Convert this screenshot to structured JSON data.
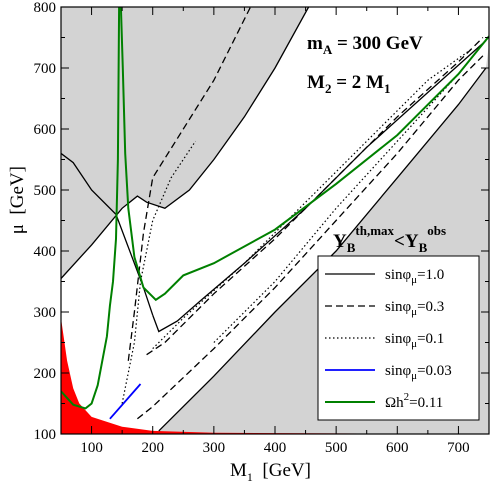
{
  "chart_data": {
    "type": "line",
    "title": "",
    "xlim": [
      50,
      750
    ],
    "ylim": [
      100,
      800
    ],
    "x_ticks": [
      100,
      200,
      300,
      400,
      500,
      600,
      700
    ],
    "y_ticks": [
      100,
      200,
      300,
      400,
      500,
      600,
      700,
      800
    ],
    "xlabel": {
      "base": "M",
      "sub": "1",
      "rest": "  [GeV]"
    },
    "ylabel": {
      "base": "μ",
      "rest": "  [GeV]"
    },
    "annotations": {
      "ma": {
        "base": "m",
        "sub": "A",
        "rest": " = 300 GeV"
      },
      "m2": {
        "base": "M",
        "sub": "2",
        "rest": " = 2 M",
        "sub2": "1"
      },
      "yb": {
        "b1": "Y",
        "sub1": "B",
        "sup1": "th,max",
        "lt": "<",
        "b2": "Y",
        "sub2": "B",
        "sup2": "obs"
      }
    },
    "colors": {
      "excluded_region": "#d3d3d3",
      "allowed_region": "#ffffff",
      "lep_excluded": "#ff0000",
      "relic": "#008000",
      "sin003": "#0000ff",
      "contour": "#000000"
    },
    "legend": {
      "position": "bottom-right",
      "entries": [
        {
          "key": "sin10",
          "label": "sinφ",
          "sub": "μ",
          "value": "=1.0",
          "style": "solid"
        },
        {
          "key": "sin03",
          "label": "sinφ",
          "sub": "μ",
          "value": "=0.3",
          "style": "dashed"
        },
        {
          "key": "sin01",
          "label": "sinφ",
          "sub": "μ",
          "value": "=0.1",
          "style": "dotted"
        },
        {
          "key": "sin003",
          "label": "sinφ",
          "sub": "μ",
          "value": "=0.03",
          "style": "solid-blue"
        },
        {
          "key": "relic",
          "label": "Ωh",
          "sup": "2",
          "value": "=0.11",
          "style": "solid-green"
        }
      ]
    },
    "series": [
      {
        "key": "sin10",
        "style": "solid",
        "segments": [
          [
            [
              210,
              105
            ],
            [
              300,
              195
            ],
            [
              400,
              300
            ],
            [
              500,
              400
            ],
            [
              600,
              520
            ],
            [
              700,
              640
            ],
            [
              745,
              700
            ]
          ],
          [
            [
              50,
              355
            ],
            [
              100,
              410
            ],
            [
              150,
              470
            ],
            [
              175,
              490
            ],
            [
              190,
              480
            ],
            [
              220,
              470
            ],
            [
              260,
              500
            ],
            [
              300,
              550
            ],
            [
              350,
              620
            ],
            [
              400,
              700
            ],
            [
              455,
              800
            ]
          ],
          [
            [
              200,
              295
            ],
            [
              210,
              268
            ],
            [
              240,
              285
            ],
            [
              280,
              320
            ],
            [
              350,
              380
            ],
            [
              450,
              470
            ],
            [
              550,
              570
            ],
            [
              650,
              660
            ],
            [
              745,
              745
            ]
          ],
          [
            [
              200,
              295
            ],
            [
              185,
              340
            ],
            [
              140,
              460
            ],
            [
              100,
              500
            ],
            [
              70,
              545
            ],
            [
              50,
              560
            ]
          ]
        ]
      },
      {
        "key": "sin03",
        "style": "dashed",
        "segments": [
          [
            [
              175,
              125
            ],
            [
              200,
              145
            ],
            [
              300,
              240
            ],
            [
              400,
              340
            ],
            [
              500,
              450
            ],
            [
              600,
              560
            ],
            [
              700,
              680
            ],
            [
              740,
              720
            ]
          ],
          [
            [
              160,
              220
            ],
            [
              170,
              300
            ],
            [
              185,
              430
            ],
            [
              200,
              520
            ],
            [
              250,
              600
            ],
            [
              300,
              680
            ],
            [
              340,
              760
            ],
            [
              360,
              800
            ]
          ],
          [
            [
              190,
              230
            ],
            [
              220,
              250
            ],
            [
              300,
              330
            ],
            [
              400,
              420
            ],
            [
              500,
              520
            ],
            [
              600,
              620
            ],
            [
              700,
              710
            ],
            [
              740,
              750
            ]
          ]
        ]
      },
      {
        "key": "sin01",
        "style": "dotted",
        "segments": [
          [
            [
              150,
              150
            ],
            [
              170,
              250
            ],
            [
              180,
              350
            ],
            [
              200,
              450
            ],
            [
              230,
              520
            ],
            [
              270,
              580
            ]
          ],
          [
            [
              200,
              240
            ],
            [
              250,
              290
            ],
            [
              350,
              380
            ],
            [
              450,
              480
            ],
            [
              550,
              580
            ],
            [
              650,
              680
            ],
            [
              720,
              730
            ]
          ],
          [
            [
              300,
              250
            ],
            [
              400,
              350
            ],
            [
              500,
              470
            ],
            [
              600,
              580
            ],
            [
              700,
              690
            ]
          ]
        ]
      },
      {
        "key": "sin003",
        "style": "solid-blue",
        "segments": [
          [
            [
              130,
              125
            ],
            [
              180,
              182
            ]
          ]
        ]
      },
      {
        "key": "relic",
        "style": "solid-green",
        "segments": [
          [
            [
              50,
              170
            ],
            [
              70,
              148
            ],
            [
              90,
              142
            ],
            [
              100,
              150
            ],
            [
              110,
              180
            ],
            [
              125,
              260
            ],
            [
              130,
              310
            ],
            [
              135,
              350
            ],
            [
              140,
              420
            ],
            [
              143,
              550
            ],
            [
              145,
              800
            ]
          ],
          [
            [
              148,
              800
            ],
            [
              151,
              700
            ],
            [
              155,
              560
            ],
            [
              160,
              470
            ],
            [
              170,
              390
            ],
            [
              185,
              340
            ],
            [
              205,
              320
            ],
            [
              220,
              330
            ],
            [
              250,
              360
            ],
            [
              300,
              380
            ],
            [
              400,
              435
            ],
            [
              500,
              510
            ],
            [
              600,
              590
            ],
            [
              700,
              690
            ],
            [
              750,
              752
            ]
          ]
        ]
      },
      {
        "key": "lep_excluded",
        "style": "filled-red",
        "segments": [
          [
            [
              50,
              100
            ],
            [
              50,
              290
            ],
            [
              60,
              220
            ],
            [
              70,
              175
            ],
            [
              80,
              150
            ],
            [
              100,
              128
            ],
            [
              150,
              112
            ],
            [
              200,
              105
            ],
            [
              300,
              102
            ],
            [
              500,
              101
            ],
            [
              750,
              100
            ],
            [
              750,
              100
            ]
          ]
        ]
      }
    ]
  }
}
